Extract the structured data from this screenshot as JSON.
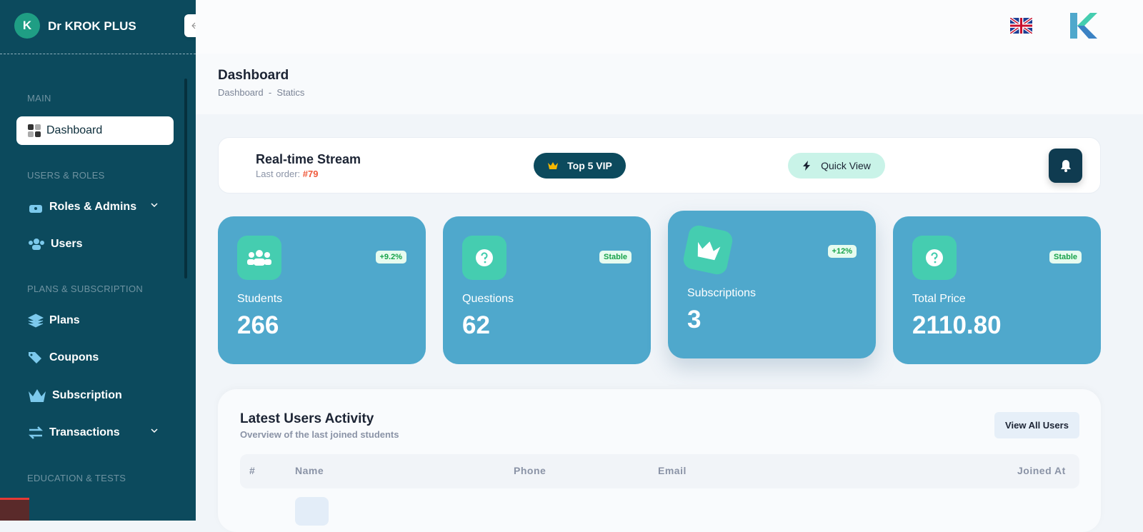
{
  "sidebar": {
    "brand_initial": "K",
    "brand": "Dr KROK PLUS",
    "sections": [
      {
        "title": "MAIN",
        "items": [
          "Dashboard"
        ]
      },
      {
        "title": "USERS & ROLES",
        "items": [
          "Roles & Admins",
          "Users"
        ]
      },
      {
        "title": "PLANS & SUBSCRIPTION",
        "items": [
          "Plans",
          "Coupons",
          "Subscription",
          "Transactions"
        ]
      },
      {
        "title": "EDUCATION & TESTS"
      }
    ]
  },
  "header": {
    "title": "Dashboard",
    "breadcrumb": [
      "Dashboard",
      "Statics"
    ],
    "separator": "-"
  },
  "stream": {
    "title": "Real-time Stream",
    "last_order_label": "Last order:",
    "last_order": "#79",
    "buttons": [
      "Top 5 VIP",
      "Quick View"
    ]
  },
  "stats": [
    {
      "label": "Students",
      "value": 266,
      "badge": "+9.2%"
    },
    {
      "label": "Questions",
      "value": 62,
      "badge": "Stable"
    },
    {
      "label": "Subscriptions",
      "value": 3,
      "badge": "+12%"
    },
    {
      "label": "Total Price",
      "value": "2110.80",
      "badge": "Stable"
    }
  ],
  "activity": {
    "title": "Latest Users Activity",
    "subtitle": "Overview of the last joined students",
    "button": "View All Users",
    "columns": [
      "#",
      "Name",
      "Phone",
      "Email",
      "Joined At"
    ]
  }
}
